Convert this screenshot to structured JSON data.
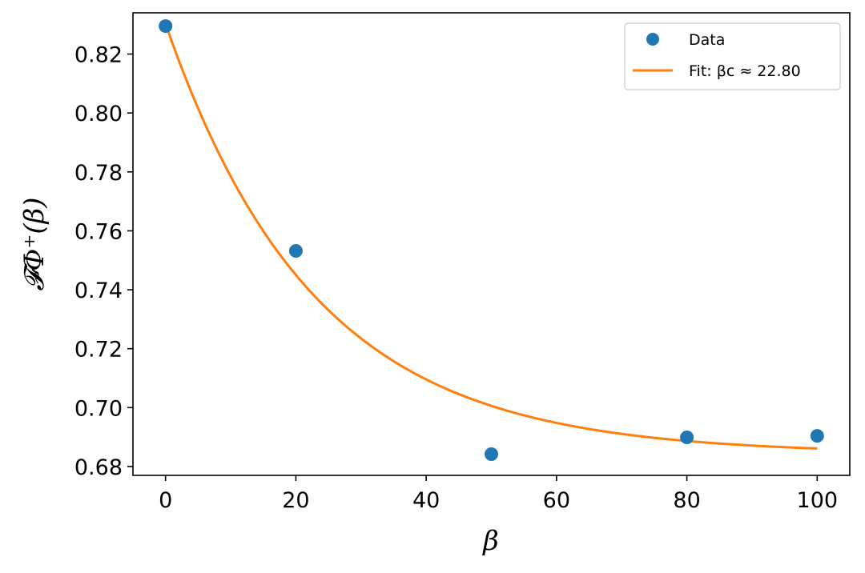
{
  "chart_data": {
    "type": "scatter",
    "title": "",
    "xlabel": "β",
    "ylabel": "𝓕Φ⁺(β)",
    "xlim": [
      -5,
      105
    ],
    "ylim": [
      0.677,
      0.834
    ],
    "xticks": [
      0,
      20,
      40,
      60,
      80,
      100
    ],
    "xtick_labels": [
      "0",
      "20",
      "40",
      "60",
      "80",
      "100"
    ],
    "yticks": [
      0.68,
      0.7,
      0.72,
      0.74,
      0.76,
      0.78,
      0.8,
      0.82
    ],
    "ytick_labels": [
      "0.68",
      "0.70",
      "0.72",
      "0.74",
      "0.76",
      "0.78",
      "0.80",
      "0.82"
    ],
    "grid": false,
    "legend_position": "top-right",
    "series": [
      {
        "name": "Data",
        "kind": "scatter",
        "color": "#1f77b4",
        "x": [
          0,
          20,
          50,
          80,
          100
        ],
        "y": [
          0.8295,
          0.7532,
          0.6842,
          0.6899,
          0.6904
        ]
      },
      {
        "name": "Fit: βc ≈ 22.80",
        "kind": "line",
        "color": "#ff7f0e",
        "model": "exponential decay",
        "parameters": {
          "A": 0.146,
          "beta_c": 22.8,
          "C": 0.6843
        }
      }
    ]
  }
}
